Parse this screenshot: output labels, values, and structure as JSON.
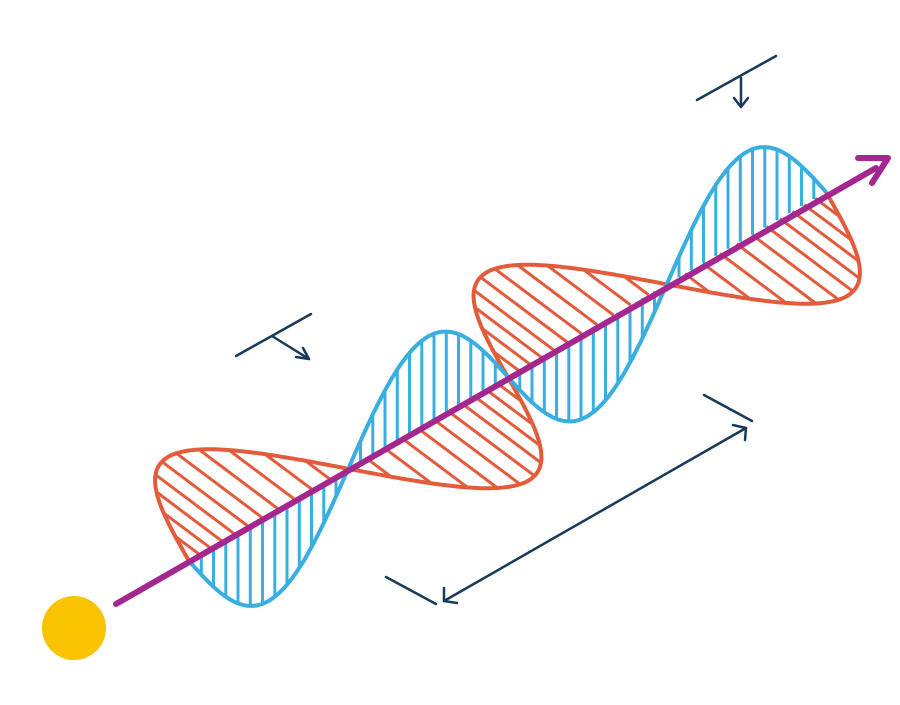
{
  "diagram": {
    "colors": {
      "background": "#ffffff",
      "electric_wave": "#39aee0",
      "magnetic_wave": "#e45b3c",
      "propagation_axis": "#a3278f",
      "light_source": "#f9c300",
      "annotation": "#183a5a"
    },
    "icons": {
      "source": "light-source-icon",
      "direction": "propagation-arrow-icon"
    }
  }
}
